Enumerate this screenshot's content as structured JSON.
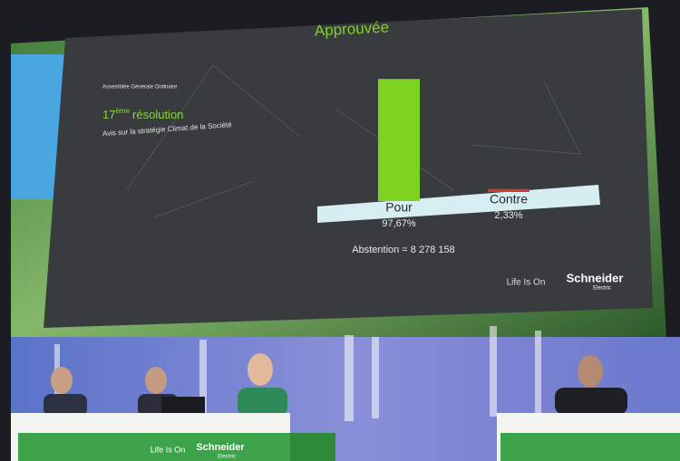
{
  "chart_data": {
    "type": "bar",
    "title": "Approuvée",
    "categories": [
      "Pour",
      "Contre"
    ],
    "values": [
      97.67,
      2.33
    ],
    "value_labels": [
      "97,67%",
      "2,33%"
    ],
    "colors": [
      "#7ed321",
      "#d23a32"
    ],
    "annotation": "Abstention = 8 278 158"
  },
  "slide": {
    "meeting": "Assemblée Générale Ordinaire",
    "resolution_number": "17",
    "resolution_suffix": "ème",
    "resolution_word": "résolution",
    "subject": "Avis sur la stratégie Climat de la Société"
  },
  "brand": {
    "tagline": "Life Is On",
    "name": "Schneider",
    "sub": "Electric"
  }
}
